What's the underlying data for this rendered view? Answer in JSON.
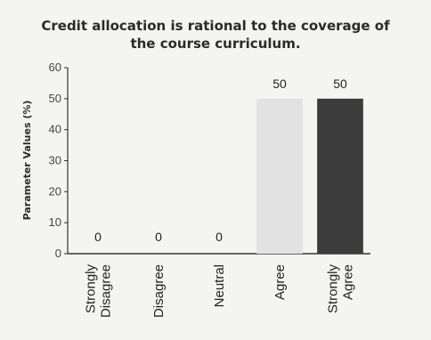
{
  "chart_data": {
    "type": "bar",
    "title_lines": [
      "Credit allocation is rational to the coverage of",
      "the course curriculum."
    ],
    "ylabel": "Parameter Values (%)",
    "xlabel": "",
    "ylim": [
      0,
      60
    ],
    "yticks": [
      0,
      10,
      20,
      30,
      40,
      50,
      60
    ],
    "categories": [
      [
        "Strongly",
        "Disagree"
      ],
      [
        "Disagree"
      ],
      [
        "Neutral"
      ],
      [
        "Agree"
      ],
      [
        "Strongly",
        "Agree"
      ]
    ],
    "values": [
      0,
      0,
      0,
      50,
      50
    ],
    "bar_colors": [
      "#e6e6e6",
      "#cfcfcf",
      "#bdbdbd",
      "#e2e2e2",
      "#3c3c3c"
    ],
    "grid": false,
    "legend": "none"
  }
}
